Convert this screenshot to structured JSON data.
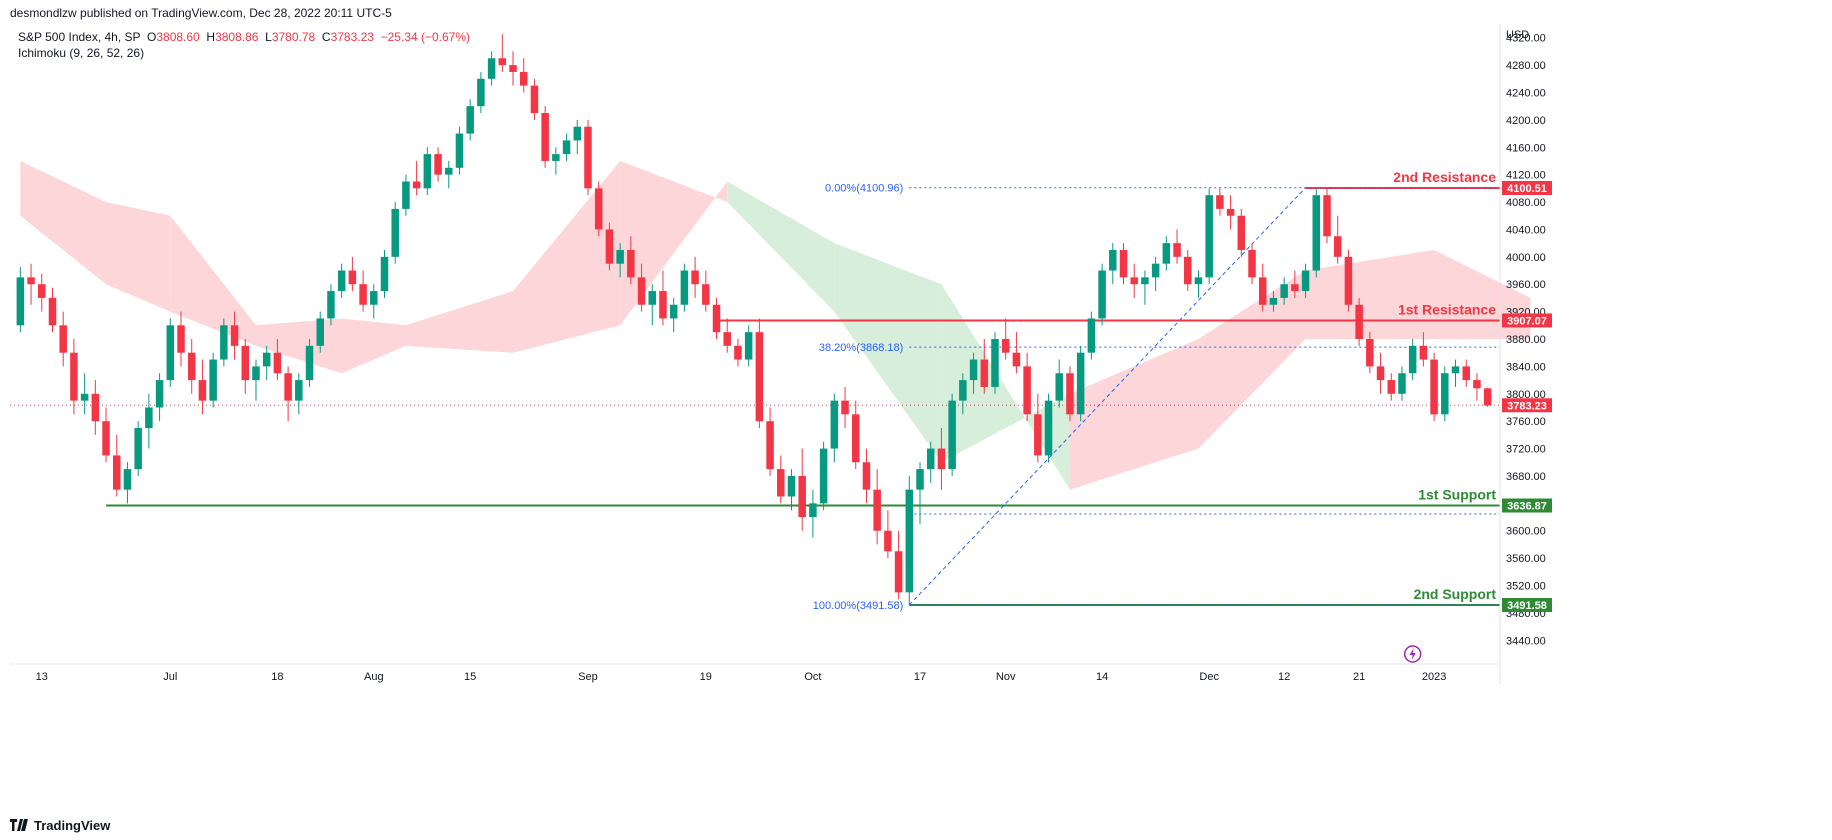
{
  "header": {
    "published": "desmondlzw published on TradingView.com, Dec 28, 2022 20:11 UTC-5"
  },
  "legend": {
    "symbol": "S&P 500 Index, 4h, SP",
    "open_label": "O",
    "open": "3808.60",
    "high_label": "H",
    "high": "3808.86",
    "low_label": "L",
    "low": "3780.78",
    "close_label": "C",
    "close": "3783.23",
    "change": "−25.34 (−0.67%)",
    "indicator": "Ichimoku (9, 26, 52, 26)"
  },
  "footer": {
    "brand": "TradingView"
  },
  "colors": {
    "bull": "#089981",
    "bear": "#f23645",
    "cloud_bull": "#d7eedb",
    "cloud_bear": "#fcd6d8",
    "resistance": "#f23645",
    "support": "#2e8b34",
    "fib": "#2962ff"
  },
  "chart_data": {
    "type": "candlestick",
    "currency": "USD",
    "y_ticks": [
      3440,
      3480,
      3520,
      3560,
      3600,
      3640,
      3680,
      3720,
      3760,
      3800,
      3840,
      3880,
      3920,
      3960,
      4000,
      4040,
      4080,
      4120,
      4160,
      4200,
      4240,
      4280,
      4320
    ],
    "x_labels": [
      "13",
      "Jul",
      "18",
      "Aug",
      "15",
      "Sep",
      "19",
      "Oct",
      "17",
      "Nov",
      "14",
      "Dec",
      "12",
      "21",
      "2023"
    ],
    "last_price": 3783.23,
    "levels": [
      {
        "label": "2nd Resistance",
        "price": 4100.51,
        "tag": "4100.51",
        "kind": "resistance"
      },
      {
        "label": "1st Resistance",
        "price": 3907.07,
        "tag": "3907.07",
        "kind": "resistance"
      },
      {
        "label": "1st Support",
        "price": 3636.87,
        "tag": "3636.87",
        "kind": "support"
      },
      {
        "label": "2nd Support",
        "price": 3491.58,
        "tag": "3491.58",
        "kind": "support"
      }
    ],
    "last_price_tag": "3783.23",
    "fibonacci": [
      {
        "label": "0.00%(4100.96)",
        "price": 4100.96
      },
      {
        "label": "38.20%(3868.18)",
        "price": 3868.18
      },
      {
        "label": "100.00%(3491.58)",
        "price": 3491.58
      }
    ],
    "candles": [
      [
        3900,
        3985,
        3890,
        3970
      ],
      [
        3970,
        3990,
        3930,
        3960
      ],
      [
        3960,
        3975,
        3920,
        3940
      ],
      [
        3940,
        3955,
        3890,
        3900
      ],
      [
        3900,
        3920,
        3840,
        3860
      ],
      [
        3860,
        3880,
        3770,
        3790
      ],
      [
        3790,
        3830,
        3770,
        3800
      ],
      [
        3800,
        3820,
        3740,
        3760
      ],
      [
        3760,
        3780,
        3700,
        3710
      ],
      [
        3710,
        3740,
        3650,
        3660
      ],
      [
        3660,
        3700,
        3640,
        3690
      ],
      [
        3690,
        3760,
        3680,
        3750
      ],
      [
        3750,
        3800,
        3720,
        3780
      ],
      [
        3780,
        3830,
        3760,
        3820
      ],
      [
        3820,
        3910,
        3810,
        3900
      ],
      [
        3900,
        3920,
        3840,
        3860
      ],
      [
        3860,
        3880,
        3800,
        3820
      ],
      [
        3820,
        3850,
        3770,
        3790
      ],
      [
        3790,
        3860,
        3780,
        3850
      ],
      [
        3850,
        3910,
        3840,
        3900
      ],
      [
        3900,
        3920,
        3850,
        3870
      ],
      [
        3870,
        3880,
        3800,
        3820
      ],
      [
        3820,
        3850,
        3790,
        3840
      ],
      [
        3840,
        3870,
        3820,
        3860
      ],
      [
        3860,
        3880,
        3820,
        3830
      ],
      [
        3830,
        3840,
        3760,
        3790
      ],
      [
        3790,
        3830,
        3770,
        3820
      ],
      [
        3820,
        3880,
        3810,
        3870
      ],
      [
        3870,
        3920,
        3860,
        3910
      ],
      [
        3910,
        3960,
        3900,
        3950
      ],
      [
        3950,
        3990,
        3940,
        3980
      ],
      [
        3980,
        4000,
        3950,
        3960
      ],
      [
        3960,
        3980,
        3920,
        3930
      ],
      [
        3930,
        3960,
        3910,
        3950
      ],
      [
        3950,
        4010,
        3940,
        4000
      ],
      [
        4000,
        4080,
        3990,
        4070
      ],
      [
        4070,
        4120,
        4060,
        4110
      ],
      [
        4110,
        4140,
        4090,
        4100
      ],
      [
        4100,
        4160,
        4090,
        4150
      ],
      [
        4150,
        4160,
        4110,
        4120
      ],
      [
        4120,
        4140,
        4100,
        4130
      ],
      [
        4130,
        4190,
        4120,
        4180
      ],
      [
        4180,
        4230,
        4170,
        4220
      ],
      [
        4220,
        4270,
        4210,
        4260
      ],
      [
        4260,
        4300,
        4250,
        4290
      ],
      [
        4290,
        4325,
        4270,
        4280
      ],
      [
        4280,
        4300,
        4250,
        4270
      ],
      [
        4270,
        4290,
        4240,
        4250
      ],
      [
        4250,
        4260,
        4200,
        4210
      ],
      [
        4210,
        4220,
        4130,
        4140
      ],
      [
        4140,
        4160,
        4120,
        4150
      ],
      [
        4150,
        4180,
        4140,
        4170
      ],
      [
        4170,
        4200,
        4150,
        4190
      ],
      [
        4190,
        4200,
        4090,
        4100
      ],
      [
        4100,
        4110,
        4030,
        4040
      ],
      [
        4040,
        4050,
        3980,
        3990
      ],
      [
        3990,
        4020,
        3970,
        4010
      ],
      [
        4010,
        4030,
        3960,
        3970
      ],
      [
        3970,
        3990,
        3920,
        3930
      ],
      [
        3930,
        3960,
        3900,
        3950
      ],
      [
        3950,
        3980,
        3900,
        3910
      ],
      [
        3910,
        3940,
        3890,
        3930
      ],
      [
        3930,
        3990,
        3920,
        3980
      ],
      [
        3980,
        4000,
        3940,
        3960
      ],
      [
        3960,
        3980,
        3920,
        3930
      ],
      [
        3930,
        3940,
        3880,
        3890
      ],
      [
        3890,
        3910,
        3860,
        3870
      ],
      [
        3870,
        3880,
        3840,
        3850
      ],
      [
        3850,
        3900,
        3840,
        3890
      ],
      [
        3890,
        3910,
        3750,
        3760
      ],
      [
        3760,
        3780,
        3680,
        3690
      ],
      [
        3690,
        3710,
        3640,
        3650
      ],
      [
        3650,
        3690,
        3630,
        3680
      ],
      [
        3680,
        3720,
        3600,
        3620
      ],
      [
        3620,
        3660,
        3590,
        3640
      ],
      [
        3640,
        3730,
        3630,
        3720
      ],
      [
        3720,
        3800,
        3700,
        3790
      ],
      [
        3790,
        3810,
        3750,
        3770
      ],
      [
        3770,
        3790,
        3690,
        3700
      ],
      [
        3700,
        3720,
        3640,
        3660
      ],
      [
        3660,
        3690,
        3580,
        3600
      ],
      [
        3600,
        3630,
        3560,
        3570
      ],
      [
        3570,
        3600,
        3500,
        3510
      ],
      [
        3510,
        3680,
        3491,
        3660
      ],
      [
        3660,
        3700,
        3610,
        3690
      ],
      [
        3690,
        3730,
        3670,
        3720
      ],
      [
        3720,
        3750,
        3660,
        3690
      ],
      [
        3690,
        3800,
        3680,
        3790
      ],
      [
        3790,
        3830,
        3770,
        3820
      ],
      [
        3820,
        3860,
        3800,
        3850
      ],
      [
        3850,
        3880,
        3800,
        3810
      ],
      [
        3810,
        3890,
        3800,
        3880
      ],
      [
        3880,
        3910,
        3850,
        3860
      ],
      [
        3860,
        3890,
        3830,
        3840
      ],
      [
        3840,
        3860,
        3760,
        3770
      ],
      [
        3770,
        3800,
        3700,
        3710
      ],
      [
        3710,
        3800,
        3700,
        3790
      ],
      [
        3790,
        3850,
        3780,
        3830
      ],
      [
        3830,
        3840,
        3760,
        3770
      ],
      [
        3770,
        3870,
        3760,
        3860
      ],
      [
        3860,
        3920,
        3850,
        3910
      ],
      [
        3910,
        3990,
        3900,
        3980
      ],
      [
        3980,
        4020,
        3960,
        4010
      ],
      [
        4010,
        4020,
        3960,
        3970
      ],
      [
        3970,
        3990,
        3940,
        3960
      ],
      [
        3960,
        3980,
        3930,
        3970
      ],
      [
        3970,
        4000,
        3950,
        3990
      ],
      [
        3990,
        4030,
        3980,
        4020
      ],
      [
        4020,
        4040,
        3990,
        4000
      ],
      [
        4000,
        4010,
        3950,
        3960
      ],
      [
        3960,
        3980,
        3940,
        3970
      ],
      [
        3970,
        4100,
        3960,
        4090
      ],
      [
        4090,
        4100,
        4060,
        4070
      ],
      [
        4070,
        4090,
        4040,
        4060
      ],
      [
        4060,
        4070,
        4000,
        4010
      ],
      [
        4010,
        4020,
        3960,
        3970
      ],
      [
        3970,
        3990,
        3920,
        3930
      ],
      [
        3930,
        3950,
        3920,
        3940
      ],
      [
        3940,
        3970,
        3930,
        3960
      ],
      [
        3960,
        3980,
        3940,
        3950
      ],
      [
        3950,
        3990,
        3940,
        3980
      ],
      [
        3980,
        4100,
        3970,
        4090
      ],
      [
        4090,
        4100,
        4020,
        4030
      ],
      [
        4030,
        4060,
        3990,
        4000
      ],
      [
        4000,
        4010,
        3920,
        3930
      ],
      [
        3930,
        3940,
        3870,
        3880
      ],
      [
        3880,
        3890,
        3830,
        3840
      ],
      [
        3840,
        3860,
        3800,
        3820
      ],
      [
        3820,
        3830,
        3790,
        3800
      ],
      [
        3800,
        3840,
        3790,
        3830
      ],
      [
        3830,
        3880,
        3820,
        3870
      ],
      [
        3870,
        3890,
        3840,
        3850
      ],
      [
        3850,
        3860,
        3760,
        3770
      ],
      [
        3770,
        3840,
        3760,
        3830
      ],
      [
        3830,
        3850,
        3810,
        3840
      ],
      [
        3840,
        3850,
        3810,
        3820
      ],
      [
        3820,
        3830,
        3790,
        3808
      ],
      [
        3808,
        3809,
        3781,
        3783
      ]
    ],
    "cloud": [
      {
        "i": 0,
        "a": 4140,
        "b": 4060
      },
      {
        "i": 8,
        "a": 4080,
        "b": 3960
      },
      {
        "i": 14,
        "a": 4060,
        "b": 3920
      },
      {
        "i": 22,
        "a": 3900,
        "b": 3870
      },
      {
        "i": 30,
        "a": 3910,
        "b": 3830
      },
      {
        "i": 36,
        "a": 3900,
        "b": 3870
      },
      {
        "i": 46,
        "a": 3950,
        "b": 3860
      },
      {
        "i": 56,
        "a": 4140,
        "b": 3900
      },
      {
        "i": 66,
        "a": 4080,
        "b": 4110
      },
      {
        "i": 76,
        "a": 3920,
        "b": 4020
      },
      {
        "i": 86,
        "a": 3700,
        "b": 3960
      },
      {
        "i": 98,
        "a": 3800,
        "b": 3660
      },
      {
        "i": 110,
        "a": 3880,
        "b": 3720
      },
      {
        "i": 120,
        "a": 3980,
        "b": 3880
      },
      {
        "i": 132,
        "a": 4010,
        "b": 3880
      },
      {
        "i": 141,
        "a": 3940,
        "b": 3880
      }
    ]
  }
}
